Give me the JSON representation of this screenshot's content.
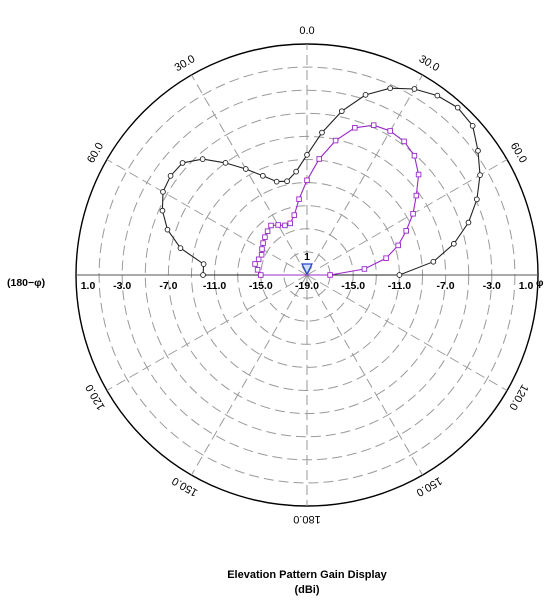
{
  "chart_data": {
    "type": "polar",
    "title": "Elevation Pattern Gain Display",
    "subtitle": "(dBi)",
    "left_axis_label": "(180−φ)",
    "right_axis_label": "φ",
    "marker_label": "1",
    "angle_labels": [
      {
        "deg": 0,
        "text": "0.0"
      },
      {
        "deg": 30,
        "text": "30.0"
      },
      {
        "deg": 60,
        "text": "60.0"
      },
      {
        "deg": 120,
        "text": "120.0"
      },
      {
        "deg": 150,
        "text": "150.0"
      },
      {
        "deg": 180,
        "text": "180.0"
      },
      {
        "deg": -150,
        "text": "150.0"
      },
      {
        "deg": -120,
        "text": "120.0"
      },
      {
        "deg": -60,
        "text": "60.0"
      },
      {
        "deg": -30,
        "text": "30.0"
      }
    ],
    "radial_tick_labels": [
      "-19.0",
      "-15.0",
      "-11.0",
      "-7.0",
      "-3.0",
      "1.0"
    ],
    "rlim": [
      -19,
      1
    ],
    "grid": true,
    "colors": {
      "black_series": "#222222",
      "purple_series": "#9a28c8",
      "marker": "#2244cc",
      "grid": "#9a9a9a"
    },
    "series": [
      {
        "marker": "circle",
        "points": [
          [
            -90,
            -10.0
          ],
          [
            -84,
            -10.0
          ],
          [
            -78,
            -7.8
          ],
          [
            -72,
            -6.3
          ],
          [
            -66,
            -5.3
          ],
          [
            -60,
            -4.6
          ],
          [
            -54,
            -4.4
          ],
          [
            -48,
            -4.5
          ],
          [
            -42,
            -5.5
          ],
          [
            -36,
            -7.0
          ],
          [
            -30,
            -8.4
          ],
          [
            -24,
            -9.6
          ],
          [
            -18,
            -10.5
          ],
          [
            -12,
            -10.7
          ],
          [
            -6,
            -10.0
          ],
          [
            0,
            -8.6
          ],
          [
            6,
            -6.6
          ],
          [
            12,
            -4.5
          ],
          [
            18,
            -2.6
          ],
          [
            24,
            -1.3
          ],
          [
            30,
            -0.4
          ],
          [
            36,
            0.2
          ],
          [
            42,
            0.5
          ],
          [
            48,
            0.3
          ],
          [
            54,
            -0.7
          ],
          [
            60,
            -1.7
          ],
          [
            66,
            -2.9
          ],
          [
            72,
            -4.3
          ],
          [
            78,
            -6.0
          ],
          [
            84,
            -8.0
          ],
          [
            90,
            -11.0
          ]
        ]
      },
      {
        "marker": "square",
        "points": [
          [
            -90,
            -15.0
          ],
          [
            -84,
            -14.7
          ],
          [
            -78,
            -14.4
          ],
          [
            -72,
            -14.6
          ],
          [
            -66,
            -14.7
          ],
          [
            -60,
            -14.5
          ],
          [
            -54,
            -14.3
          ],
          [
            -48,
            -14.1
          ],
          [
            -42,
            -13.9
          ],
          [
            -36,
            -13.7
          ],
          [
            -30,
            -14.0
          ],
          [
            -24,
            -14.3
          ],
          [
            -18,
            -14.3
          ],
          [
            -12,
            -13.7
          ],
          [
            -6,
            -12.4
          ],
          [
            0,
            -10.8
          ],
          [
            6,
            -8.9
          ],
          [
            12,
            -7.1
          ],
          [
            18,
            -5.6
          ],
          [
            24,
            -4.8
          ],
          [
            30,
            -4.6
          ],
          [
            36,
            -4.7
          ],
          [
            42,
            -5.1
          ],
          [
            48,
            -6.0
          ],
          [
            54,
            -7.3
          ],
          [
            60,
            -8.4
          ],
          [
            66,
            -9.6
          ],
          [
            72,
            -10.7
          ],
          [
            78,
            -12.0
          ],
          [
            84,
            -14.0
          ],
          [
            90,
            -17.0
          ]
        ]
      }
    ]
  }
}
